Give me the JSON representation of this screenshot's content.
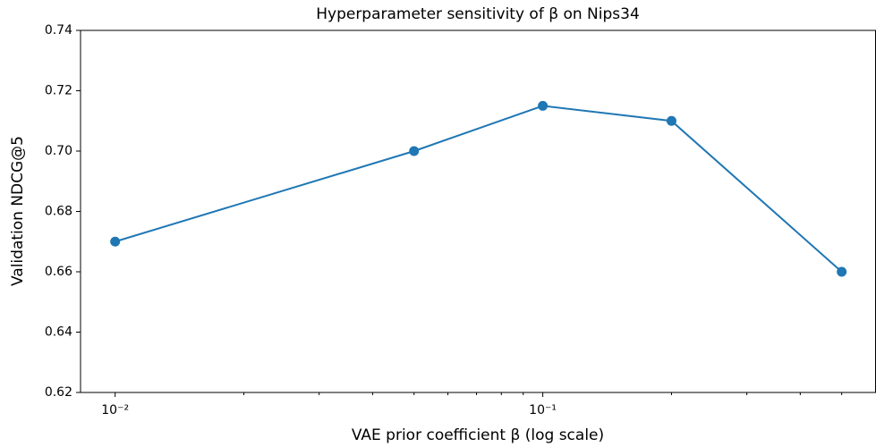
{
  "chart_data": {
    "type": "line",
    "title": "Hyperparameter sensitivity of β on Nips34",
    "xlabel": "VAE prior coefficient β (log scale)",
    "ylabel": "Validation NDCG@5",
    "x": [
      0.01,
      0.05,
      0.1,
      0.2,
      0.5
    ],
    "series": [
      {
        "name": "Validation NDCG@5",
        "color": "#1f77b4",
        "values": [
          0.67,
          0.7,
          0.715,
          0.71,
          0.66
        ]
      }
    ],
    "xscale": "log",
    "xlim": [
      0.0083,
      0.6
    ],
    "xticks": [
      {
        "value": 0.01,
        "label": "10⁻²"
      },
      {
        "value": 0.1,
        "label": "10⁻¹"
      }
    ],
    "xminorticks": [
      0.02,
      0.03,
      0.04,
      0.05,
      0.06,
      0.07,
      0.08,
      0.09,
      0.2,
      0.3,
      0.4,
      0.5
    ],
    "ylim": [
      0.62,
      0.74
    ],
    "yticks": [
      0.62,
      0.64,
      0.66,
      0.68,
      {
        "value": 0.7,
        "label": "0.70"
      },
      0.72,
      0.74
    ],
    "grid": false
  }
}
